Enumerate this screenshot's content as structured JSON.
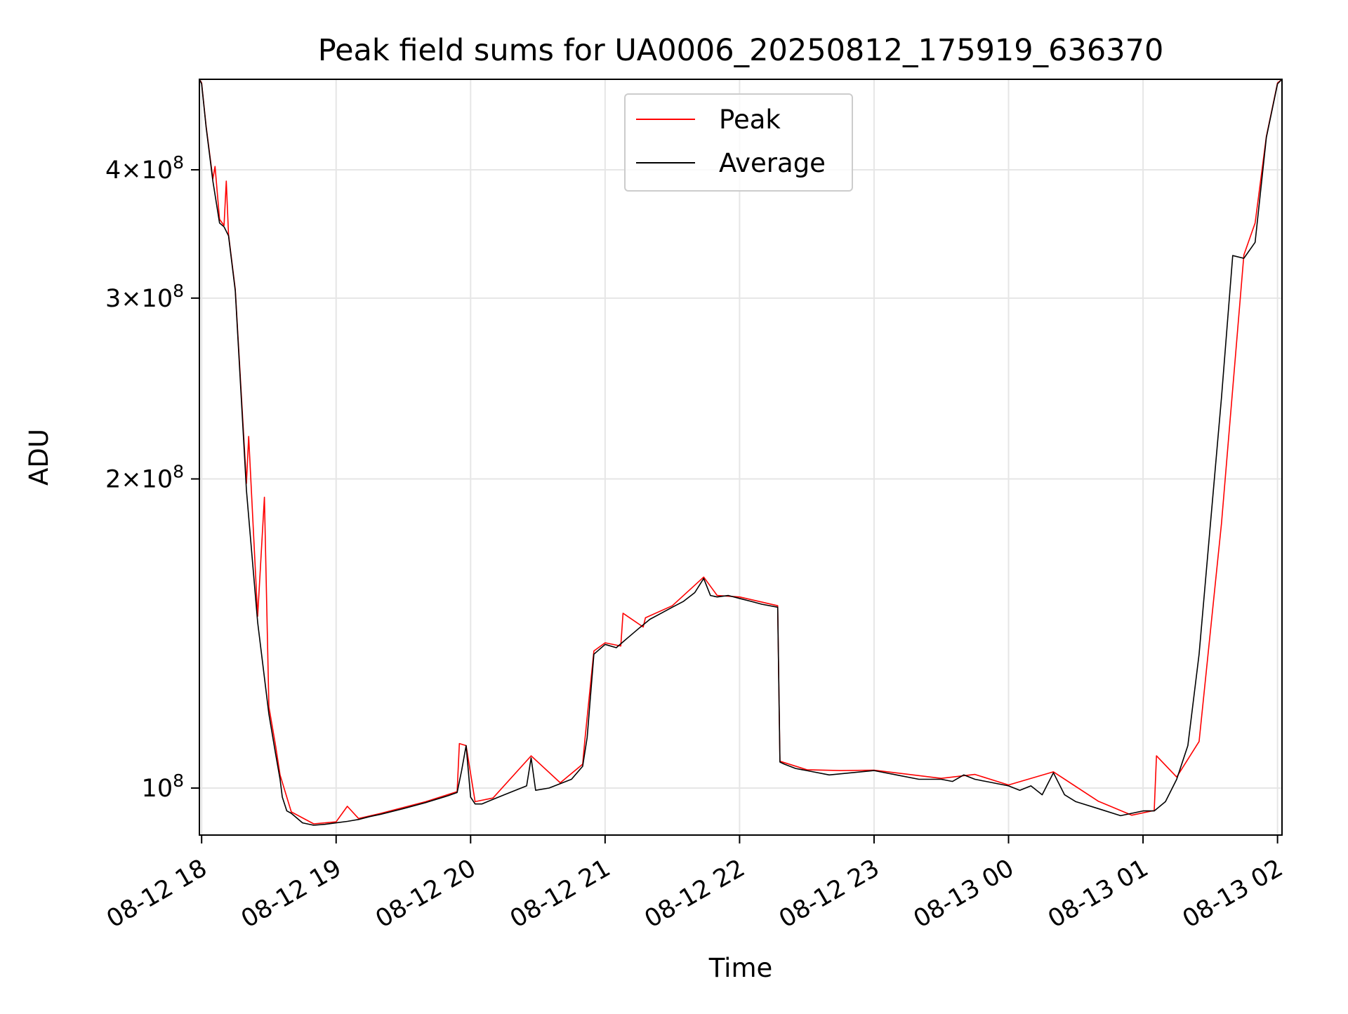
{
  "chart_data": {
    "type": "line",
    "title": "Peak field sums for UA0006_20250812_175919_636370",
    "xlabel": "Time",
    "ylabel": "ADU",
    "yscale": "log",
    "grid": true,
    "legend_position": "top-center",
    "xlim": [
      "2025-08-12 17:59",
      "2025-08-13 02:02"
    ],
    "ylim": [
      90000000,
      490000000
    ],
    "x_ticks": [
      {
        "value": "2025-08-12 18:00",
        "label": "08-12 18"
      },
      {
        "value": "2025-08-12 19:00",
        "label": "08-12 19"
      },
      {
        "value": "2025-08-12 20:00",
        "label": "08-12 20"
      },
      {
        "value": "2025-08-12 21:00",
        "label": "08-12 21"
      },
      {
        "value": "2025-08-12 22:00",
        "label": "08-12 22"
      },
      {
        "value": "2025-08-12 23:00",
        "label": "08-12 23"
      },
      {
        "value": "2025-08-13 00:00",
        "label": "08-13 00"
      },
      {
        "value": "2025-08-13 01:00",
        "label": "08-13 01"
      },
      {
        "value": "2025-08-13 02:00",
        "label": "08-13 02"
      }
    ],
    "y_ticks": [
      {
        "value": 100000000,
        "label": "10",
        "exp": "8",
        "mantissa": ""
      },
      {
        "value": 200000000,
        "label": "2×10",
        "exp": "8",
        "mantissa": "2"
      },
      {
        "value": 300000000,
        "label": "3×10",
        "exp": "8",
        "mantissa": "3"
      },
      {
        "value": 400000000,
        "label": "4×10",
        "exp": "8",
        "mantissa": "4"
      }
    ],
    "series": [
      {
        "name": "Average",
        "color": "#000000",
        "x": [
          "2025-08-12 17:59",
          "2025-08-12 18:00",
          "2025-08-12 18:02",
          "2025-08-12 18:05",
          "2025-08-12 18:08",
          "2025-08-12 18:10",
          "2025-08-12 18:12",
          "2025-08-12 18:15",
          "2025-08-12 18:20",
          "2025-08-12 18:25",
          "2025-08-12 18:30",
          "2025-08-12 18:33",
          "2025-08-12 18:35",
          "2025-08-12 18:36",
          "2025-08-12 18:38",
          "2025-08-12 18:40",
          "2025-08-12 18:45",
          "2025-08-12 18:50",
          "2025-08-12 18:55",
          "2025-08-12 19:00",
          "2025-08-12 19:05",
          "2025-08-12 19:10",
          "2025-08-12 19:15",
          "2025-08-12 19:20",
          "2025-08-12 19:30",
          "2025-08-12 19:40",
          "2025-08-12 19:50",
          "2025-08-12 19:54",
          "2025-08-12 19:56",
          "2025-08-12 19:58",
          "2025-08-12 20:00",
          "2025-08-12 20:02",
          "2025-08-12 20:05",
          "2025-08-12 20:10",
          "2025-08-12 20:15",
          "2025-08-12 20:20",
          "2025-08-12 20:25",
          "2025-08-12 20:27",
          "2025-08-12 20:29",
          "2025-08-12 20:35",
          "2025-08-12 20:40",
          "2025-08-12 20:45",
          "2025-08-12 20:50",
          "2025-08-12 20:52",
          "2025-08-12 20:55",
          "2025-08-12 21:00",
          "2025-08-12 21:05",
          "2025-08-12 21:10",
          "2025-08-12 21:15",
          "2025-08-12 21:20",
          "2025-08-12 21:25",
          "2025-08-12 21:30",
          "2025-08-12 21:35",
          "2025-08-12 21:40",
          "2025-08-12 21:44",
          "2025-08-12 21:47",
          "2025-08-12 21:50",
          "2025-08-12 21:55",
          "2025-08-12 22:00",
          "2025-08-12 22:05",
          "2025-08-12 22:10",
          "2025-08-12 22:17",
          "2025-08-12 22:18",
          "2025-08-12 22:20",
          "2025-08-12 22:25",
          "2025-08-12 22:30",
          "2025-08-12 22:40",
          "2025-08-12 22:50",
          "2025-08-12 23:00",
          "2025-08-12 23:10",
          "2025-08-12 23:20",
          "2025-08-12 23:30",
          "2025-08-12 23:35",
          "2025-08-12 23:40",
          "2025-08-12 23:45",
          "2025-08-12 23:50",
          "2025-08-13 00:00",
          "2025-08-13 00:05",
          "2025-08-13 00:10",
          "2025-08-13 00:15",
          "2025-08-13 00:20",
          "2025-08-13 00:25",
          "2025-08-13 00:30",
          "2025-08-13 00:40",
          "2025-08-13 00:50",
          "2025-08-13 00:55",
          "2025-08-13 01:00",
          "2025-08-13 01:05",
          "2025-08-13 01:10",
          "2025-08-13 01:15",
          "2025-08-13 01:20",
          "2025-08-13 01:25",
          "2025-08-13 01:30",
          "2025-08-13 01:35",
          "2025-08-13 01:40",
          "2025-08-13 01:45",
          "2025-08-13 01:50",
          "2025-08-13 01:55",
          "2025-08-13 02:00",
          "2025-08-13 02:02"
        ],
        "y": [
          490000000,
          485000000,
          440000000,
          390000000,
          355000000,
          352000000,
          345000000,
          305000000,
          195000000,
          145000000,
          118000000,
          108000000,
          102000000,
          98000000,
          95000000,
          94500000,
          92500000,
          92000000,
          92200000,
          92500000,
          92800000,
          93200000,
          93800000,
          94300000,
          95500000,
          96800000,
          98300000,
          99000000,
          104000000,
          110000000,
          98000000,
          96500000,
          96500000,
          97500000,
          98500000,
          99500000,
          100500000,
          107000000,
          99500000,
          100000000,
          101000000,
          102000000,
          105000000,
          112000000,
          135000000,
          138000000,
          137000000,
          140000000,
          143000000,
          146000000,
          148000000,
          150000000,
          152000000,
          155000000,
          160000000,
          154000000,
          153500000,
          154000000,
          153000000,
          152000000,
          151000000,
          150000000,
          106000000,
          105500000,
          104500000,
          104000000,
          103000000,
          103500000,
          104000000,
          103000000,
          102000000,
          102000000,
          101500000,
          103000000,
          102000000,
          101500000,
          100500000,
          99500000,
          100500000,
          98500000,
          103500000,
          98500000,
          97000000,
          95500000,
          94000000,
          94500000,
          95000000,
          95000000,
          97000000,
          102000000,
          110000000,
          135000000,
          180000000,
          240000000,
          330000000,
          328000000,
          340000000,
          430000000,
          485000000,
          490000000
        ]
      },
      {
        "name": "Peak",
        "color": "#ff0000",
        "x": [
          "2025-08-12 17:59",
          "2025-08-12 18:00",
          "2025-08-12 18:02",
          "2025-08-12 18:05",
          "2025-08-12 18:06",
          "2025-08-12 18:08",
          "2025-08-12 18:10",
          "2025-08-12 18:11",
          "2025-08-12 18:12",
          "2025-08-12 18:15",
          "2025-08-12 18:20",
          "2025-08-12 18:21",
          "2025-08-12 18:25",
          "2025-08-12 18:28",
          "2025-08-12 18:30",
          "2025-08-12 18:33",
          "2025-08-12 18:35",
          "2025-08-12 18:40",
          "2025-08-12 18:50",
          "2025-08-12 19:00",
          "2025-08-12 19:05",
          "2025-08-12 19:10",
          "2025-08-12 19:20",
          "2025-08-12 19:40",
          "2025-08-12 19:54",
          "2025-08-12 19:55",
          "2025-08-12 19:58",
          "2025-08-12 20:02",
          "2025-08-12 20:10",
          "2025-08-12 20:27",
          "2025-08-12 20:40",
          "2025-08-12 20:50",
          "2025-08-12 20:51",
          "2025-08-12 20:55",
          "2025-08-12 21:00",
          "2025-08-12 21:07",
          "2025-08-12 21:08",
          "2025-08-12 21:17",
          "2025-08-12 21:18",
          "2025-08-12 21:30",
          "2025-08-12 21:44",
          "2025-08-12 21:50",
          "2025-08-12 22:00",
          "2025-08-12 22:17",
          "2025-08-12 22:18",
          "2025-08-12 22:30",
          "2025-08-12 22:45",
          "2025-08-12 23:00",
          "2025-08-12 23:30",
          "2025-08-12 23:45",
          "2025-08-13 00:00",
          "2025-08-13 00:20",
          "2025-08-13 00:40",
          "2025-08-13 00:55",
          "2025-08-13 01:05",
          "2025-08-13 01:06",
          "2025-08-13 01:15",
          "2025-08-13 01:25",
          "2025-08-13 01:35",
          "2025-08-13 01:45",
          "2025-08-13 01:50",
          "2025-08-13 01:55",
          "2025-08-13 02:00",
          "2025-08-13 02:02"
        ],
        "y": [
          490000000,
          486000000,
          441000000,
          392000000,
          403000000,
          358000000,
          353000000,
          390000000,
          346000000,
          306000000,
          198000000,
          220000000,
          147000000,
          192000000,
          120000000,
          110000000,
          103000000,
          94800000,
          92300000,
          92700000,
          96000000,
          93400000,
          94500000,
          97000000,
          99200000,
          110500000,
          110000000,
          97000000,
          97800000,
          107500000,
          101200000,
          105500000,
          111500000,
          136000000,
          138500000,
          137500000,
          148000000,
          143500000,
          146500000,
          150500000,
          160500000,
          154000000,
          153500000,
          150500000,
          106200000,
          104200000,
          104000000,
          104100000,
          102200000,
          103100000,
          100700000,
          103700000,
          97100000,
          94100000,
          95100000,
          107500000,
          102500000,
          111000000,
          181000000,
          330500000,
          355000000,
          431000000,
          486000000,
          490000000
        ]
      }
    ]
  }
}
